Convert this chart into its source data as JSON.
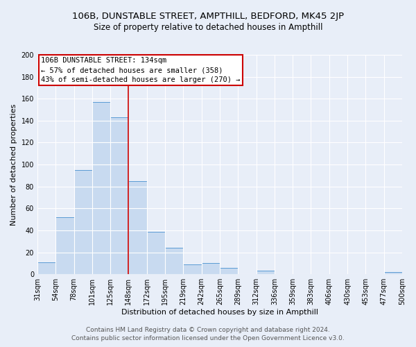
{
  "title": "106B, DUNSTABLE STREET, AMPTHILL, BEDFORD, MK45 2JP",
  "subtitle": "Size of property relative to detached houses in Ampthill",
  "xlabel": "Distribution of detached houses by size in Ampthill",
  "ylabel": "Number of detached properties",
  "footer_line1": "Contains HM Land Registry data © Crown copyright and database right 2024.",
  "footer_line2": "Contains public sector information licensed under the Open Government Licence v3.0.",
  "bin_labels": [
    "31sqm",
    "54sqm",
    "78sqm",
    "101sqm",
    "125sqm",
    "148sqm",
    "172sqm",
    "195sqm",
    "219sqm",
    "242sqm",
    "265sqm",
    "289sqm",
    "312sqm",
    "336sqm",
    "359sqm",
    "383sqm",
    "406sqm",
    "430sqm",
    "453sqm",
    "477sqm",
    "500sqm"
  ],
  "bar_values": [
    11,
    52,
    95,
    157,
    143,
    85,
    39,
    24,
    9,
    10,
    6,
    0,
    3,
    0,
    0,
    0,
    0,
    0,
    0,
    2
  ],
  "bar_color": "#c8daf0",
  "bar_edge_color": "#5b9bd5",
  "ylim": [
    0,
    200
  ],
  "yticks": [
    0,
    20,
    40,
    60,
    80,
    100,
    120,
    140,
    160,
    180,
    200
  ],
  "vline_color": "#cc0000",
  "annotation_title": "106B DUNSTABLE STREET: 134sqm",
  "annotation_line2": "← 57% of detached houses are smaller (358)",
  "annotation_line3": "43% of semi-detached houses are larger (270) →",
  "annotation_box_color": "#ffffff",
  "annotation_box_edge": "#cc0000",
  "background_color": "#e8eef8",
  "grid_color": "#ffffff",
  "title_fontsize": 9.5,
  "subtitle_fontsize": 8.5,
  "axis_label_fontsize": 8,
  "tick_fontsize": 7,
  "annotation_fontsize": 7.5,
  "footer_fontsize": 6.5
}
